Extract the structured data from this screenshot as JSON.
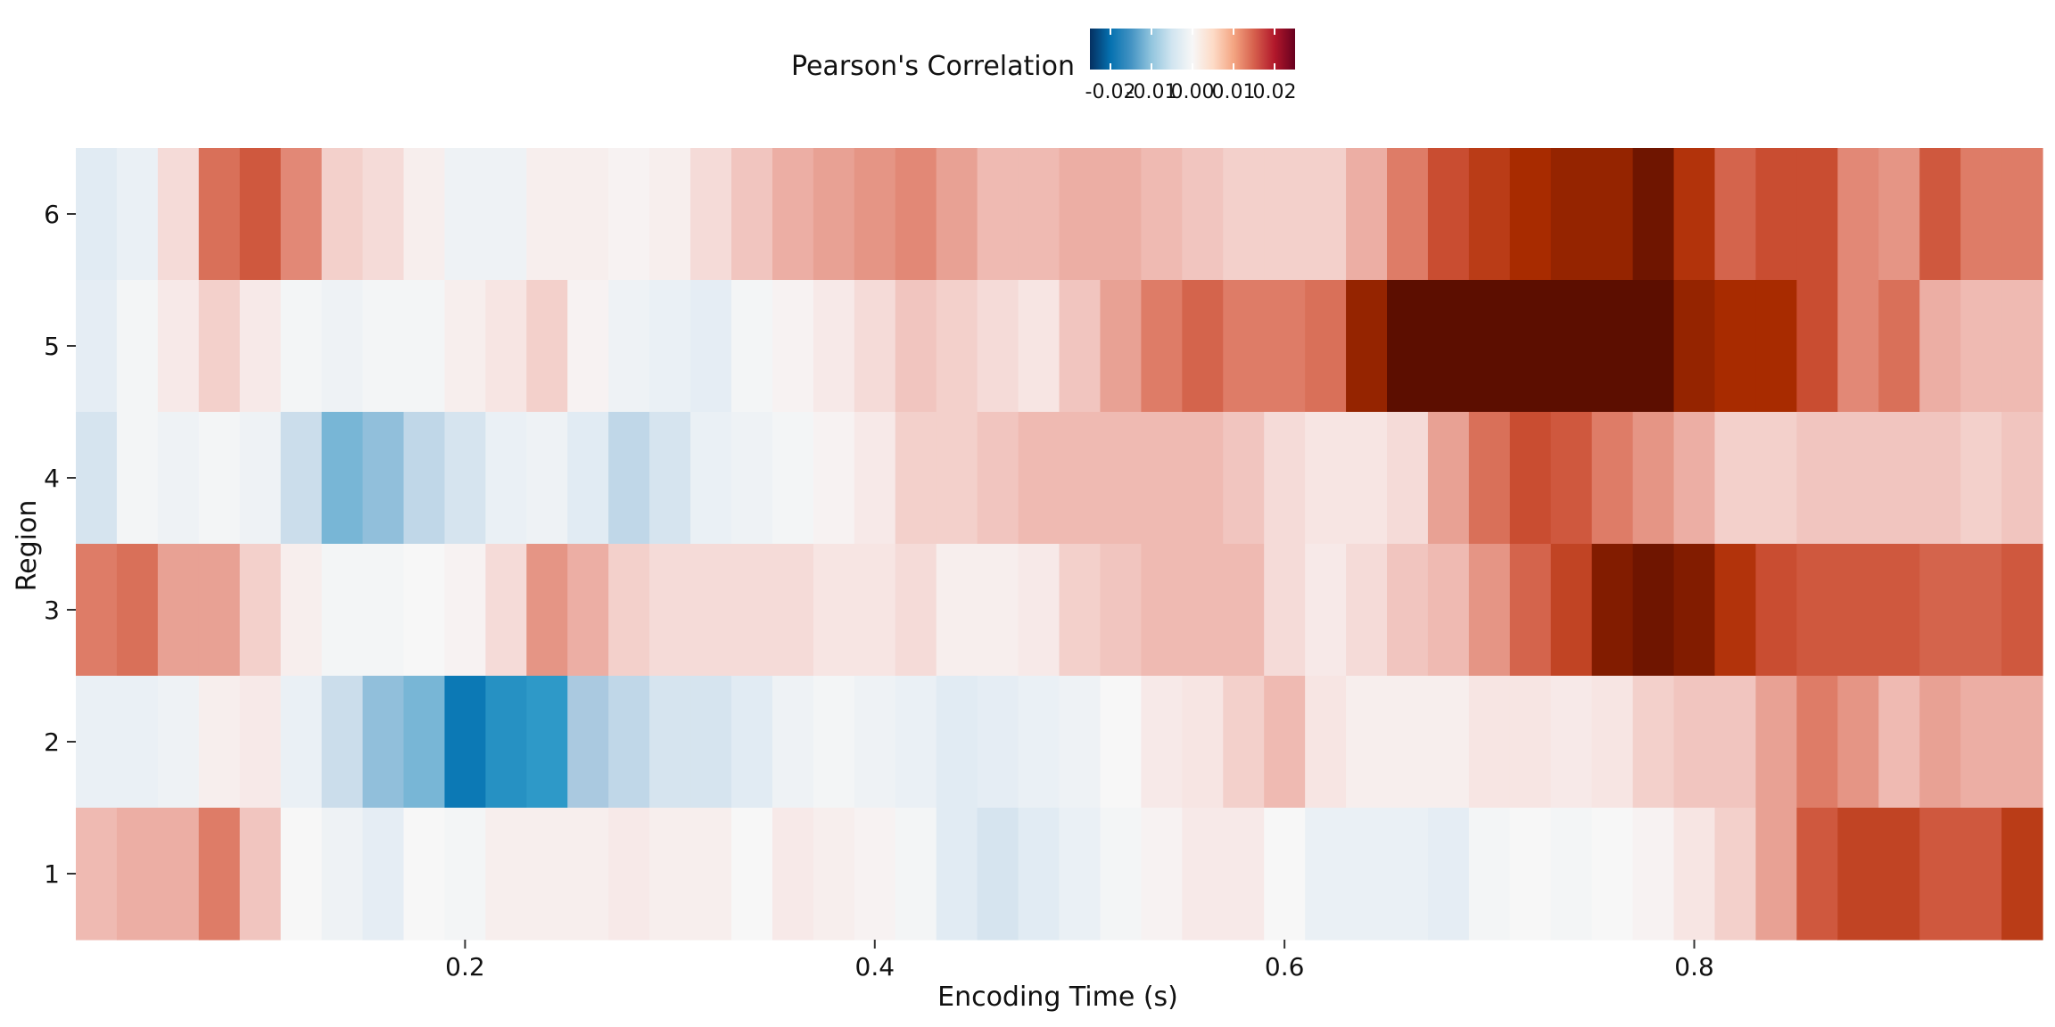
{
  "chart_data": {
    "type": "heatmap",
    "title": "",
    "xlabel": "Encoding Time (s)",
    "ylabel": "Region",
    "x_ticks": [
      "0.2",
      "0.4",
      "0.6",
      "0.8"
    ],
    "x_tick_values": [
      0.2,
      0.4,
      0.6,
      0.8
    ],
    "y_ticks": [
      "1",
      "2",
      "3",
      "4",
      "5",
      "6"
    ],
    "x_start": 0.02,
    "x_step": 0.02,
    "legend": {
      "title": "Pearson's Correlation",
      "position": "top-center",
      "ticks": [
        "-0.02",
        "-0.01",
        "0.00",
        "0.01",
        "0.02"
      ],
      "tick_values": [
        -0.02,
        -0.01,
        0.0,
        0.01,
        0.02
      ],
      "range": [
        -0.025,
        0.025
      ],
      "colors": [
        "#053061",
        "#0571b0",
        "#4393c3",
        "#92c5de",
        "#d1e5f0",
        "#f7f7f7",
        "#fddbc7",
        "#f4a582",
        "#d6604d",
        "#b2182b",
        "#67001f"
      ]
    },
    "colormap_high": [
      "#f7f7f7",
      "#f7e4e2",
      "#eeb6ae",
      "#e0826e",
      "#cc5035",
      "#ab2c00",
      "#5c0e00"
    ],
    "colormap_low": [
      "#f7f7f7",
      "#e1ebf3",
      "#aac9e0",
      "#2e99c8",
      "#0471b0",
      "#00466e"
    ],
    "rows": [
      {
        "region": "6",
        "values": [
          -0.005,
          -0.003,
          0.005,
          0.014,
          0.016,
          0.012,
          0.006,
          0.005,
          0.002,
          -0.002,
          -0.002,
          0.002,
          0.002,
          0.001,
          0.002,
          0.005,
          0.007,
          0.009,
          0.01,
          0.011,
          0.012,
          0.01,
          0.008,
          0.008,
          0.009,
          0.009,
          0.008,
          0.007,
          0.006,
          0.006,
          0.006,
          0.009,
          0.013,
          0.017,
          0.019,
          0.021,
          0.022,
          0.022,
          0.024,
          0.02,
          0.015,
          0.017,
          0.017,
          0.012,
          0.011,
          0.016,
          0.013,
          0.013
        ]
      },
      {
        "region": "5",
        "values": [
          -0.004,
          -0.001,
          0.003,
          0.006,
          0.003,
          -0.001,
          -0.002,
          -0.001,
          -0.001,
          0.002,
          0.004,
          0.006,
          0.001,
          -0.002,
          -0.003,
          -0.004,
          -0.001,
          0.001,
          0.003,
          0.005,
          0.007,
          0.006,
          0.005,
          0.004,
          0.007,
          0.01,
          0.013,
          0.015,
          0.013,
          0.013,
          0.014,
          0.022,
          0.025,
          0.027,
          0.027,
          0.028,
          0.025,
          0.029,
          0.026,
          0.022,
          0.021,
          0.021,
          0.017,
          0.012,
          0.014,
          0.009,
          0.008,
          0.008
        ]
      },
      {
        "region": "4",
        "values": [
          -0.006,
          -0.001,
          -0.002,
          -0.001,
          -0.002,
          -0.007,
          -0.012,
          -0.011,
          -0.008,
          -0.006,
          -0.003,
          -0.002,
          -0.005,
          -0.008,
          -0.006,
          -0.003,
          -0.002,
          -0.001,
          0.001,
          0.003,
          0.006,
          0.006,
          0.007,
          0.008,
          0.008,
          0.008,
          0.008,
          0.008,
          0.007,
          0.005,
          0.004,
          0.004,
          0.005,
          0.01,
          0.014,
          0.017,
          0.016,
          0.013,
          0.011,
          0.009,
          0.006,
          0.006,
          0.007,
          0.007,
          0.007,
          0.007,
          0.006,
          0.007
        ]
      },
      {
        "region": "3",
        "values": [
          0.013,
          0.014,
          0.01,
          0.01,
          0.006,
          0.002,
          -0.001,
          -0.001,
          0.0,
          0.001,
          0.005,
          0.011,
          0.009,
          0.006,
          0.005,
          0.005,
          0.005,
          0.005,
          0.004,
          0.004,
          0.005,
          0.002,
          0.002,
          0.003,
          0.006,
          0.007,
          0.008,
          0.008,
          0.008,
          0.005,
          0.003,
          0.005,
          0.007,
          0.008,
          0.011,
          0.015,
          0.018,
          0.023,
          0.024,
          0.023,
          0.02,
          0.017,
          0.016,
          0.016,
          0.016,
          0.015,
          0.015,
          0.016
        ]
      },
      {
        "region": "2",
        "values": [
          -0.003,
          -0.003,
          -0.002,
          0.002,
          0.003,
          -0.003,
          -0.007,
          -0.011,
          -0.012,
          -0.019,
          -0.016,
          -0.015,
          -0.01,
          -0.008,
          -0.006,
          -0.006,
          -0.005,
          -0.002,
          -0.001,
          -0.002,
          -0.003,
          -0.005,
          -0.004,
          -0.003,
          -0.002,
          0.0,
          0.003,
          0.004,
          0.006,
          0.008,
          0.004,
          0.002,
          0.002,
          0.002,
          0.004,
          0.004,
          0.003,
          0.004,
          0.006,
          0.007,
          0.007,
          0.01,
          0.013,
          0.011,
          0.008,
          0.01,
          0.009,
          0.009
        ]
      },
      {
        "region": "1",
        "values": [
          0.008,
          0.009,
          0.009,
          0.013,
          0.007,
          0.0,
          -0.002,
          -0.004,
          0.0,
          -0.001,
          0.002,
          0.002,
          0.002,
          0.003,
          0.002,
          0.002,
          0.0,
          0.003,
          0.002,
          0.001,
          -0.001,
          -0.005,
          -0.006,
          -0.005,
          -0.003,
          -0.001,
          0.001,
          0.003,
          0.003,
          0.0,
          -0.003,
          -0.003,
          -0.003,
          -0.004,
          -0.001,
          0.0,
          -0.001,
          -0.0,
          0.001,
          0.004,
          0.006,
          0.01,
          0.016,
          0.018,
          0.018,
          0.016,
          0.016,
          0.019
        ]
      }
    ]
  }
}
